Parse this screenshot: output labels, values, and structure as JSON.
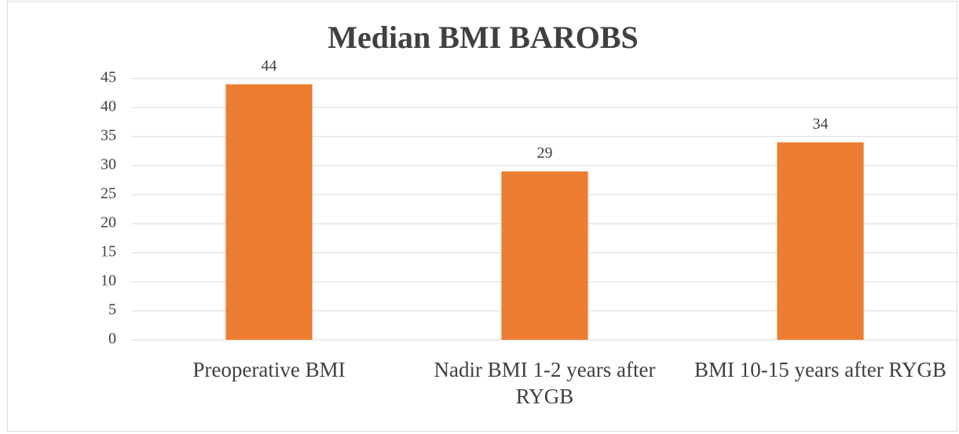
{
  "chart_data": {
    "type": "bar",
    "title": "Median BMI BAROBS",
    "categories": [
      "Preoperative BMI",
      "Nadir BMI 1-2 years after RYGB",
      "BMI 10-15 years after RYGB"
    ],
    "values": [
      44,
      29,
      34
    ],
    "color": "#ed7d31",
    "ylim": [
      0,
      45
    ],
    "yticks": [
      0,
      5,
      10,
      15,
      20,
      25,
      30,
      35,
      40,
      45
    ],
    "grid": true
  }
}
